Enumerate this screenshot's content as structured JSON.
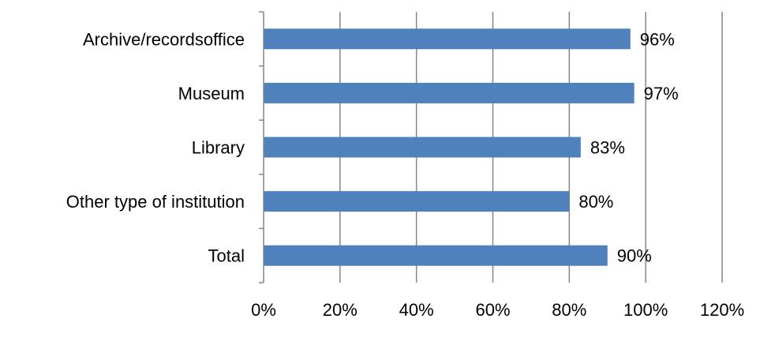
{
  "chart_data": {
    "type": "bar",
    "orientation": "horizontal",
    "categories": [
      "Archive/recordsoffice",
      "Museum",
      "Library",
      "Other type of institution",
      "Total"
    ],
    "values": [
      96,
      97,
      83,
      80,
      90
    ],
    "data_labels": [
      "96%",
      "97%",
      "83%",
      "80%",
      "90%"
    ],
    "xlim": [
      0,
      120
    ],
    "x_ticks": [
      0,
      20,
      40,
      60,
      80,
      100,
      120
    ],
    "x_tick_labels": [
      "0%",
      "20%",
      "40%",
      "60%",
      "80%",
      "100%",
      "120%"
    ],
    "grid": "vertical",
    "legend": "none",
    "bar_color": "#4f81bd",
    "grid_color": "#868686"
  }
}
